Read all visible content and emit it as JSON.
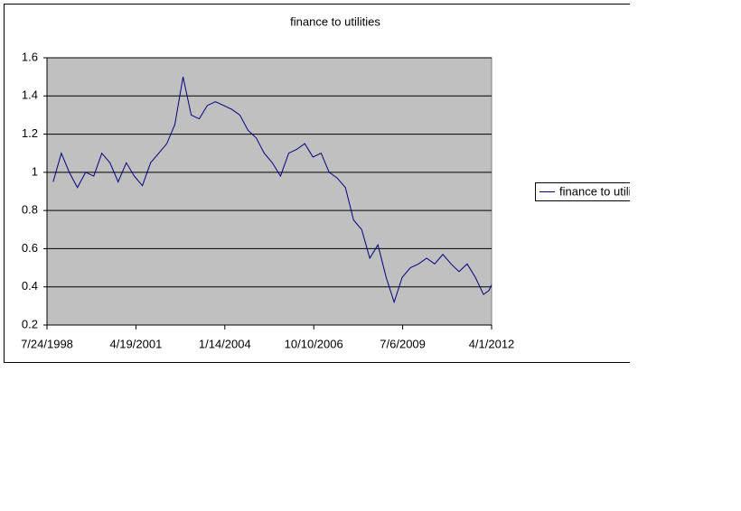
{
  "chart_data": {
    "type": "line",
    "title": "finance to utilities",
    "x": [
      "10/1/1998",
      "1/1/1999",
      "4/1/1999",
      "7/1/1999",
      "10/1/1999",
      "1/1/2000",
      "4/1/2000",
      "7/1/2000",
      "10/1/2000",
      "1/1/2001",
      "4/1/2001",
      "7/1/2001",
      "10/1/2001",
      "1/1/2002",
      "4/1/2002",
      "7/1/2002",
      "10/1/2002",
      "1/1/2003",
      "4/1/2003",
      "7/1/2003",
      "10/1/2003",
      "1/1/2004",
      "4/1/2004",
      "7/1/2004",
      "10/1/2004",
      "1/1/2005",
      "4/1/2005",
      "7/1/2005",
      "10/1/2005",
      "1/1/2006",
      "4/1/2006",
      "7/1/2006",
      "10/1/2006",
      "1/1/2007",
      "4/1/2007",
      "7/1/2007",
      "10/1/2007",
      "1/1/2008",
      "4/1/2008",
      "7/1/2008",
      "10/1/2008",
      "1/1/2009",
      "4/1/2009",
      "7/1/2009",
      "10/1/2009",
      "1/1/2010",
      "4/1/2010",
      "7/1/2010",
      "10/1/2010",
      "1/1/2011",
      "4/1/2011",
      "7/1/2011",
      "10/1/2011",
      "1/1/2012",
      "3/1/2012",
      "4/1/2012"
    ],
    "series": [
      {
        "name": "finance to utilities",
        "color": "#000080",
        "values": [
          0.95,
          1.1,
          1.0,
          0.92,
          1.0,
          0.98,
          1.1,
          1.05,
          0.95,
          1.05,
          0.98,
          0.93,
          1.05,
          1.1,
          1.15,
          1.25,
          1.5,
          1.3,
          1.28,
          1.35,
          1.37,
          1.35,
          1.33,
          1.3,
          1.22,
          1.18,
          1.1,
          1.05,
          0.98,
          1.1,
          1.12,
          1.15,
          1.08,
          1.1,
          1.0,
          0.97,
          0.92,
          0.75,
          0.7,
          0.55,
          0.62,
          0.45,
          0.32,
          0.45,
          0.5,
          0.52,
          0.55,
          0.52,
          0.57,
          0.52,
          0.48,
          0.52,
          0.45,
          0.36,
          0.38,
          0.41
        ]
      }
    ],
    "xlim": [
      "7/24/1998",
      "4/1/2012"
    ],
    "xticks": [
      "7/24/1998",
      "4/19/2001",
      "1/14/2004",
      "10/10/2006",
      "7/6/2009",
      "4/1/2012"
    ],
    "ylim": [
      0.2,
      1.6
    ],
    "yticks": [
      0.2,
      0.4,
      0.6,
      0.8,
      1,
      1.2,
      1.4,
      1.6
    ],
    "grid": true,
    "legend": "right"
  }
}
